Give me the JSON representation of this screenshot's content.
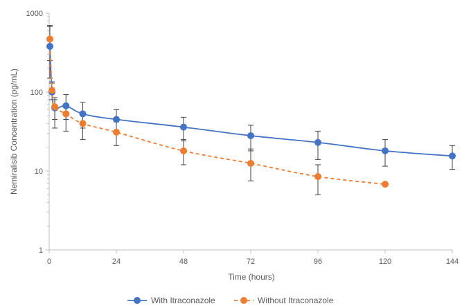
{
  "chart_data": {
    "type": "line",
    "title": "",
    "xlabel": "Time (hours)",
    "ylabel": "Nemiralisib Concentration (pg/mL)",
    "x_scale": "linear",
    "y_scale": "log",
    "xlim": [
      0,
      144
    ],
    "ylim": [
      1,
      1000
    ],
    "x_ticks": [
      0,
      24,
      48,
      72,
      96,
      120,
      144
    ],
    "y_ticks": [
      1,
      10,
      100,
      1000
    ],
    "grid": false,
    "legend_position": "bottom",
    "series": [
      {
        "name": "With Itraconazole",
        "color": "#4472C4",
        "line_style": "solid",
        "points": [
          {
            "x": 0.25,
            "y": 380,
            "err_low": 150,
            "err_high": 680
          },
          {
            "x": 1,
            "y": 100,
            "err_low": 80,
            "err_high": 130
          },
          {
            "x": 2,
            "y": 63,
            "err_low": 35,
            "err_high": 85
          },
          {
            "x": 6,
            "y": 67,
            "err_low": 45,
            "err_high": 93
          },
          {
            "x": 12,
            "y": 53,
            "err_low": 35,
            "err_high": 74
          },
          {
            "x": 24,
            "y": 45,
            "err_low": 33,
            "err_high": 60
          },
          {
            "x": 48,
            "y": 36,
            "err_low": 24,
            "err_high": 48
          },
          {
            "x": 72,
            "y": 28,
            "err_low": 18,
            "err_high": 38
          },
          {
            "x": 96,
            "y": 23,
            "err_low": 14,
            "err_high": 32
          },
          {
            "x": 120,
            "y": 18,
            "err_low": 11.5,
            "err_high": 25
          },
          {
            "x": 144,
            "y": 15.5,
            "err_low": 10.5,
            "err_high": 21
          }
        ]
      },
      {
        "name": "Without Itraconazole",
        "color": "#ED7D31",
        "line_style": "dashed",
        "points": [
          {
            "x": 0.25,
            "y": 470,
            "err_low": 250,
            "err_high": 700
          },
          {
            "x": 1,
            "y": 105,
            "err_low": 80,
            "err_high": 135
          },
          {
            "x": 2,
            "y": 65,
            "err_low": 45,
            "err_high": 80
          },
          {
            "x": 6,
            "y": 53,
            "err_low": 32,
            "err_high": 70
          },
          {
            "x": 12,
            "y": 40,
            "err_low": 25,
            "err_high": 55
          },
          {
            "x": 24,
            "y": 31,
            "err_low": 21,
            "err_high": 42
          },
          {
            "x": 48,
            "y": 18,
            "err_low": 12,
            "err_high": 25
          },
          {
            "x": 72,
            "y": 12.5,
            "err_low": 7.5,
            "err_high": 19
          },
          {
            "x": 96,
            "y": 8.5,
            "err_low": 5,
            "err_high": 12
          },
          {
            "x": 120,
            "y": 6.8
          }
        ]
      }
    ],
    "axis_color": "#bfbfbf",
    "text_color": "#595959",
    "error_bar_color": "#404040"
  }
}
